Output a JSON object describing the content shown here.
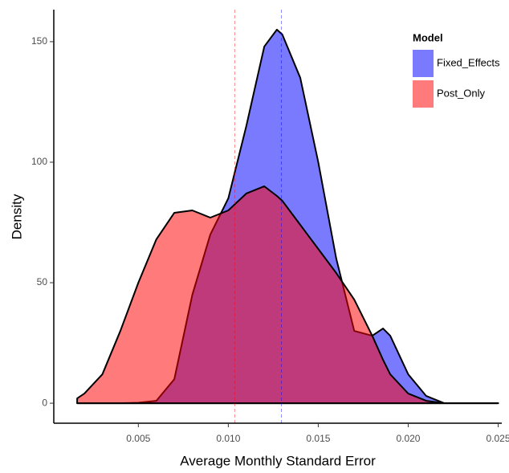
{
  "chart_data": {
    "type": "density",
    "x_label": "Average Monthly Standard Error",
    "y_label": "Density",
    "legend_title": "Model",
    "legend_position": "top-right",
    "x": [
      0.0016,
      0.002,
      0.003,
      0.004,
      0.005,
      0.006,
      0.007,
      0.008,
      0.009,
      0.01,
      0.011,
      0.012,
      0.0127,
      0.013,
      0.014,
      0.015,
      0.016,
      0.017,
      0.018,
      0.0186,
      0.019,
      0.02,
      0.021,
      0.022,
      0.023,
      0.024,
      0.025
    ],
    "series": [
      {
        "name": "Fixed_Effects",
        "color": "#0000ff",
        "values": [
          0,
          0,
          0,
          0,
          0.2,
          1,
          10,
          45,
          70,
          85,
          115,
          148,
          155,
          153,
          135,
          100,
          60,
          30,
          28,
          31,
          28,
          12,
          3,
          0,
          0,
          0,
          0
        ]
      },
      {
        "name": "Post_Only",
        "color": "#ff0000",
        "values": [
          2,
          4,
          12,
          30,
          50,
          68,
          79,
          80,
          77,
          80,
          87,
          90,
          86,
          84,
          74,
          64,
          54,
          43,
          28,
          18,
          12,
          4,
          1,
          0,
          0,
          0,
          0
        ]
      }
    ],
    "vlines": [
      {
        "value": 0.01295,
        "color": "#0000ff"
      },
      {
        "value": 0.01036,
        "color": "#ff0000"
      }
    ],
    "xlim": [
      0.0003,
      0.0252
    ],
    "xticks": [
      0.005,
      {
        "value": 0.01,
        "label": "0.010"
      },
      0.015,
      {
        "value": 0.02,
        "label": "0.020"
      },
      0.025
    ],
    "ylim": [
      -8.3,
      163.3
    ],
    "yticks": [
      0,
      50,
      100,
      150
    ],
    "grid": false
  }
}
